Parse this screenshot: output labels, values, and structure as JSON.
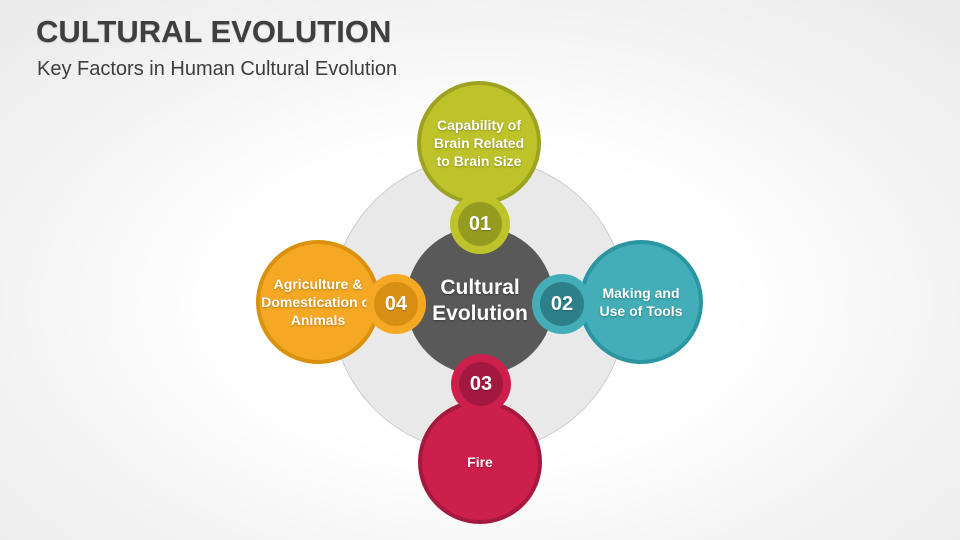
{
  "slide": {
    "title": "CULTURAL EVOLUTION",
    "subtitle": "Key Factors in Human Cultural Evolution"
  },
  "diagram": {
    "center_label": "Cultural Evolution",
    "nodes": [
      {
        "number": "01",
        "label": "Capability of Brain Related to Brain Size",
        "fill": "#bec32a",
        "border": "#9da320",
        "badge_fill": "#949b1e",
        "position": "top"
      },
      {
        "number": "02",
        "label": "Making and Use of Tools",
        "fill": "#43aeb8",
        "border": "#2b95a2",
        "badge_fill": "#2d7f8a",
        "position": "right"
      },
      {
        "number": "03",
        "label": "Fire",
        "fill": "#cc1f4c",
        "border": "#a51940",
        "badge_fill": "#a2183f",
        "position": "bottom"
      },
      {
        "number": "04",
        "label": "Agriculture & Domestication of Animals",
        "fill": "#f5a823",
        "border": "#d9910e",
        "badge_fill": "#d88e12",
        "position": "left"
      }
    ],
    "colors": {
      "center_fill": "#595959",
      "background_ring_fill": "#e9e9e9",
      "background_ring_border": "#cccccc",
      "title_text": "#3f3f3f",
      "node_text": "#ffffff"
    }
  }
}
